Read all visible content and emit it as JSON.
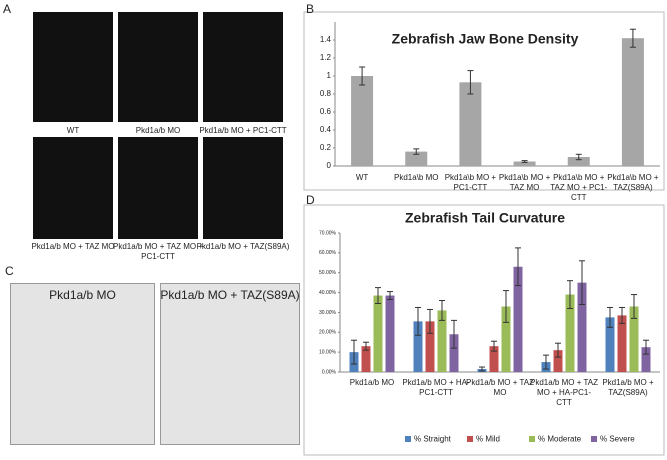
{
  "panel_labels": [
    "A",
    "B",
    "C",
    "D"
  ],
  "panel_a": {
    "captions": [
      "WT",
      "Pkd1a/b MO",
      "Pkd1a/b MO + PC1-CTT",
      "Pkd1a/b MO + TAZ MO",
      "Pkd1a/b MO + TAZ MO + PC1-CTT",
      "Pkd1a/b MO + TAZ(S89A)"
    ]
  },
  "panel_c": {
    "titles": [
      "Pkd1a/b MO",
      "Pkd1a/b MO + TAZ(S89A)"
    ]
  },
  "chart_data": [
    {
      "type": "bar",
      "title": "Zebrafish Jaw Bone Density",
      "categories": [
        "WT",
        "Pkd1a\\b MO",
        "Pkd1a\\b MO + PC1-CTT",
        "Pkd1a\\b MO + TAZ MO",
        "Pkd1a\\b MO + TAZ MO + PC1-CTT",
        "Pkd1a\\b MO + TAZ(S89A)"
      ],
      "values": [
        1.0,
        0.16,
        0.93,
        0.05,
        0.1,
        1.42
      ],
      "errors": [
        0.1,
        0.03,
        0.13,
        0.01,
        0.03,
        0.1
      ],
      "color": "#a6a6a6",
      "ylim": [
        0,
        1.6
      ],
      "yticks": [
        0,
        0.2,
        0.4,
        0.6,
        0.8,
        1,
        1.2,
        1.4
      ]
    },
    {
      "type": "grouped_bar",
      "title": "Zebrafish Tail Curvature",
      "categories": [
        "Pkd1a/b MO",
        "Pkd1a/b MO + HA-PC1-CTT",
        "Pkd1a/b MO + TAZ MO",
        "Pkd1a/b MO + TAZ MO + HA-PC1-CTT",
        "Pkd1a/b MO + TAZ(S89A)"
      ],
      "series": [
        {
          "name": "% Straight",
          "color": "#4f81bd",
          "values": [
            10,
            25.5,
            1.5,
            5,
            27.5
          ],
          "errors": [
            6,
            7,
            1,
            3.5,
            5
          ]
        },
        {
          "name": "% Mild",
          "color": "#c0504d",
          "values": [
            13,
            25.5,
            13,
            11,
            28.5
          ],
          "errors": [
            2,
            6,
            2.5,
            3.5,
            4
          ]
        },
        {
          "name": "% Moderate",
          "color": "#9bbb59",
          "values": [
            38.5,
            31,
            33,
            39,
            33
          ],
          "errors": [
            4,
            5,
            8,
            7,
            6
          ]
        },
        {
          "name": "% Severe",
          "color": "#8064a2",
          "values": [
            38.5,
            19,
            53,
            45,
            12.5
          ],
          "errors": [
            2,
            7,
            9.5,
            11,
            3.5
          ]
        }
      ],
      "ylim": [
        0,
        70
      ],
      "yticks": [
        {
          "value": 0,
          "label": "0.00%"
        },
        {
          "value": 10,
          "label": "10.00%"
        },
        {
          "value": 20,
          "label": "20.00%"
        },
        {
          "value": 30,
          "label": "30.00%"
        },
        {
          "value": 40,
          "label": "40.00%"
        },
        {
          "value": 50,
          "label": "50.00%"
        },
        {
          "value": 60,
          "label": "60.00%"
        },
        {
          "value": 70,
          "label": "70.00%"
        }
      ],
      "legend": "bottom"
    }
  ]
}
